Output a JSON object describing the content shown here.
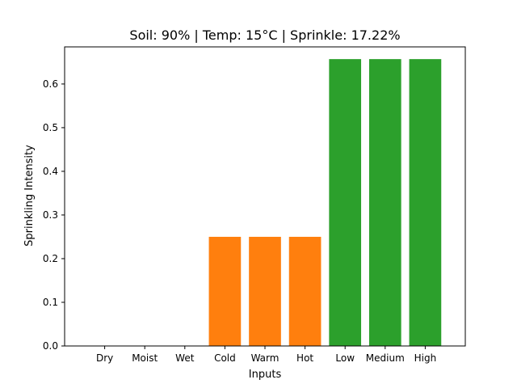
{
  "chart_data": {
    "type": "bar",
    "title": "Soil: 90% | Temp: 15°C | Sprinkle: 17.22%",
    "xlabel": "Inputs",
    "ylabel": "Sprinkling Intensity",
    "ylim": [
      0,
      0.685
    ],
    "yticks": [
      0.0,
      0.1,
      0.2,
      0.3,
      0.4,
      0.5,
      0.6
    ],
    "ytick_labels": [
      "0.0",
      "0.1",
      "0.2",
      "0.3",
      "0.4",
      "0.5",
      "0.6"
    ],
    "grid": false,
    "categories": [
      "Dry",
      "Moist",
      "Wet",
      "Cold",
      "Warm",
      "Hot",
      "Low",
      "Medium",
      "High"
    ],
    "values": [
      0.0,
      0.0,
      0.0,
      0.25,
      0.25,
      0.25,
      0.657,
      0.657,
      0.657
    ],
    "bar_colors": [
      "#1f77b4",
      "#1f77b4",
      "#1f77b4",
      "#ff7f0e",
      "#ff7f0e",
      "#ff7f0e",
      "#2ca02c",
      "#2ca02c",
      "#2ca02c"
    ]
  }
}
